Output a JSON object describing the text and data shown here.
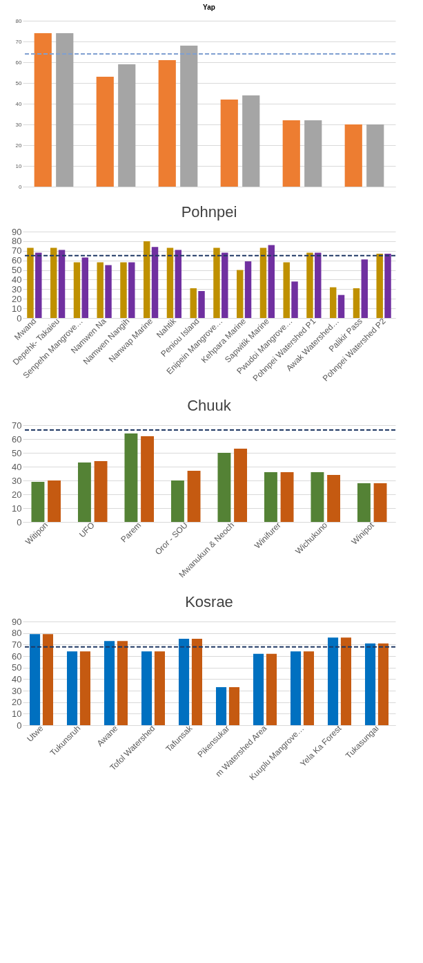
{
  "chart_data": [
    {
      "type": "bar",
      "title": "Yap",
      "categories": [
        null,
        null,
        null,
        null,
        null,
        null
      ],
      "series": [
        {
          "color": "#ed7d31",
          "values": [
            74,
            53,
            61,
            42,
            32,
            30
          ]
        },
        {
          "color": "#a5a5a5",
          "values": [
            74,
            59,
            68,
            44,
            32,
            30
          ]
        }
      ],
      "ylim": [
        0,
        80
      ],
      "yticks": [
        0,
        10,
        20,
        30,
        40,
        50,
        60,
        70,
        80
      ],
      "grid": "y",
      "tick_labels": "y",
      "ref_lines": [
        {
          "axis": "y",
          "value": 64,
          "color": "#7f9fd0",
          "line_style": "dashed"
        }
      ]
    },
    {
      "type": "bar",
      "title": "Pohnpei",
      "categories": [
        "Mwand",
        "Depehk- Takaieu",
        "Senpehn Mangrove…",
        "Namwen Na",
        "Namwen Nangih",
        "Nanwap Marine",
        "Nahtik",
        "Peniou Island",
        "Enipein Mangrove…",
        "Kehpara Marine",
        "Sapwitik Marine",
        "Pwudoi Mangrove…",
        "Pohnpei Watershed P1",
        "Awak Watershed…",
        "Palikir Pass",
        "Pohnpei Watershed P2"
      ],
      "series": [
        {
          "color": "#bf9000",
          "values": [
            73,
            73,
            58,
            58,
            58,
            80,
            73,
            31,
            73,
            50,
            73,
            58,
            68,
            32,
            31,
            67
          ]
        },
        {
          "color": "#7030a0",
          "values": [
            68,
            71,
            63,
            55,
            58,
            74,
            71,
            28,
            68,
            59,
            76,
            38,
            68,
            24,
            61,
            67
          ]
        }
      ],
      "ylim": [
        0,
        90
      ],
      "yticks": [
        0,
        10,
        20,
        30,
        40,
        50,
        60,
        70,
        80,
        90
      ],
      "grid": "y",
      "ref_lines": [
        {
          "axis": "y",
          "value": 65,
          "color": "#1f3864",
          "line_style": "dashed"
        }
      ]
    },
    {
      "type": "bar",
      "title": "Chuuk",
      "categories": [
        "Witipon",
        "UFO",
        "Parem",
        "Oror - SOU",
        "Mwanukun & Neoch",
        "Winifurer",
        "Wichukuno",
        "Winipot"
      ],
      "series": [
        {
          "color": "#548235",
          "values": [
            29,
            43,
            64,
            30,
            50,
            36,
            36,
            28
          ]
        },
        {
          "color": "#c55a11",
          "values": [
            30,
            44,
            62,
            37,
            53,
            36,
            34,
            28
          ]
        }
      ],
      "ylim": [
        0,
        70
      ],
      "yticks": [
        0,
        10,
        20,
        30,
        40,
        50,
        60,
        70
      ],
      "grid": "y",
      "ref_lines": [
        {
          "axis": "y",
          "value": 66.5,
          "color": "#1f3864",
          "line_style": "dashed"
        }
      ]
    },
    {
      "type": "bar",
      "title": "Kosrae",
      "categories": [
        "Utwe",
        "Tukunsruh",
        "Awane",
        "Tofol Watershed",
        "Tafunsak",
        "Pikensukar",
        "m Watershed Area",
        "Kuuplu Mangrove…",
        "Yela Ka Forest",
        "Tukasungai"
      ],
      "series": [
        {
          "color": "#0070c0",
          "values": [
            79,
            64,
            73,
            64,
            75,
            33,
            62,
            64,
            76,
            71
          ]
        },
        {
          "color": "#c55a11",
          "values": [
            79,
            64,
            73,
            64,
            75,
            33,
            62,
            64,
            76,
            71
          ]
        }
      ],
      "ylim": [
        0,
        90
      ],
      "yticks": [
        0,
        10,
        20,
        30,
        40,
        50,
        60,
        70,
        80,
        90
      ],
      "grid": "y",
      "ref_lines": [
        {
          "axis": "y",
          "value": 68,
          "color": "#1f3864",
          "line_style": "dashed"
        }
      ]
    }
  ]
}
